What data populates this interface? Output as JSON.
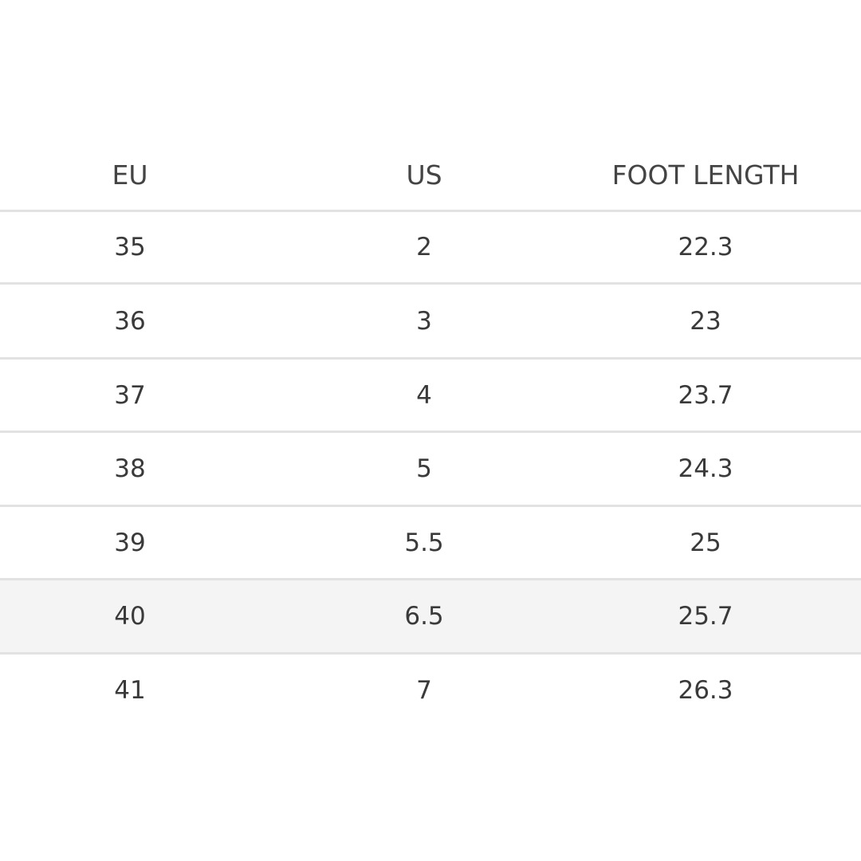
{
  "table": {
    "headers": [
      "EU",
      "US",
      "FOOT LENGTH"
    ],
    "rows": [
      [
        "35",
        "2",
        "22.3"
      ],
      [
        "36",
        "3",
        "23"
      ],
      [
        "37",
        "4",
        "23.7"
      ],
      [
        "38",
        "5",
        "24.3"
      ],
      [
        "39",
        "5.5",
        "25"
      ],
      [
        "40",
        "6.5",
        "25.7"
      ],
      [
        "41",
        "7",
        "26.3"
      ]
    ],
    "highlighted_row": 5
  }
}
